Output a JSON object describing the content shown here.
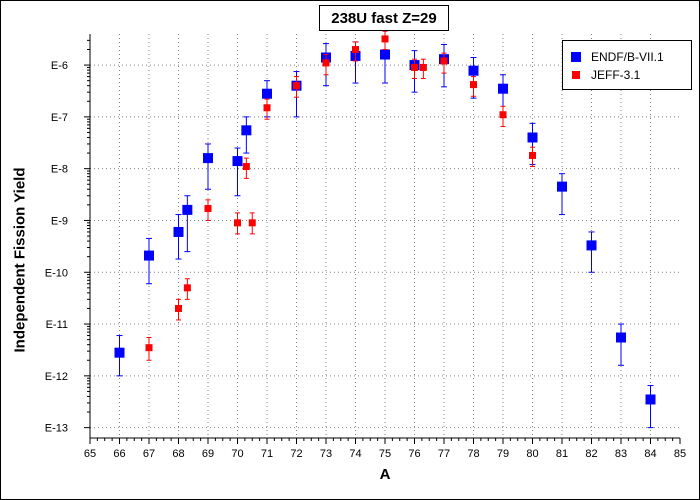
{
  "chart_data": {
    "type": "scatter",
    "title": "238U fast Z=29",
    "xlabel": "A",
    "ylabel": "Independent Fission Yield",
    "xlim": [
      65,
      85
    ],
    "ylim_log10": [
      -13.2,
      -5.4
    ],
    "y_scale": "log",
    "grid": true,
    "legend_position": "top-right",
    "x_ticks": [
      "65",
      "66",
      "67",
      "68",
      "69",
      "70",
      "71",
      "72",
      "73",
      "74",
      "75",
      "76",
      "77",
      "78",
      "79",
      "80",
      "81",
      "82",
      "83",
      "84",
      "85"
    ],
    "y_ticks": [
      {
        "exp": -6,
        "label": "E-6"
      },
      {
        "exp": -7,
        "label": "E-7"
      },
      {
        "exp": -8,
        "label": "E-8"
      },
      {
        "exp": -9,
        "label": "E-9"
      },
      {
        "exp": -10,
        "label": "E-10"
      },
      {
        "exp": -11,
        "label": "E-11"
      },
      {
        "exp": -12,
        "label": "E-12"
      },
      {
        "exp": -13,
        "label": "E-13"
      }
    ],
    "series": [
      {
        "name": "ENDF/B-VII.1",
        "color": "#0000ff",
        "marker": "square-large",
        "points": [
          {
            "x": 66,
            "y": 2.8e-12,
            "lo": 1e-12,
            "hi": 6e-12
          },
          {
            "x": 67,
            "y": 2.1e-10,
            "lo": 6e-11,
            "hi": 4.5e-10
          },
          {
            "x": 68,
            "y": 6e-10,
            "lo": 1.8e-10,
            "hi": 1.3e-09
          },
          {
            "x": 68.3,
            "y": 1.6e-09,
            "lo": 2.5e-10,
            "hi": 3e-09
          },
          {
            "x": 69,
            "y": 1.6e-08,
            "lo": 4e-09,
            "hi": 3e-08
          },
          {
            "x": 70,
            "y": 1.4e-08,
            "lo": 3e-09,
            "hi": 2.5e-08
          },
          {
            "x": 70.3,
            "y": 5.5e-08,
            "lo": 2e-08,
            "hi": 1e-07
          },
          {
            "x": 71,
            "y": 2.8e-07,
            "lo": 1e-07,
            "hi": 5e-07
          },
          {
            "x": 72,
            "y": 4e-07,
            "lo": 1e-07,
            "hi": 7.5e-07
          },
          {
            "x": 73,
            "y": 1.4e-06,
            "lo": 4e-07,
            "hi": 2.6e-06
          },
          {
            "x": 74,
            "y": 1.5e-06,
            "lo": 4.5e-07,
            "hi": 2.8e-06
          },
          {
            "x": 75,
            "y": 1.6e-06,
            "lo": 4.5e-07,
            "hi": 3e-06
          },
          {
            "x": 76,
            "y": 1e-06,
            "lo": 3e-07,
            "hi": 1.9e-06
          },
          {
            "x": 77,
            "y": 1.3e-06,
            "lo": 3.8e-07,
            "hi": 2.5e-06
          },
          {
            "x": 78,
            "y": 7.8e-07,
            "lo": 2.3e-07,
            "hi": 1.4e-06
          },
          {
            "x": 79,
            "y": 3.5e-07,
            "lo": 1e-07,
            "hi": 6.5e-07
          },
          {
            "x": 80,
            "y": 4e-08,
            "lo": 1.2e-08,
            "hi": 7.5e-08
          },
          {
            "x": 81,
            "y": 4.5e-09,
            "lo": 1.3e-09,
            "hi": 8e-09
          },
          {
            "x": 82,
            "y": 3.3e-10,
            "lo": 1e-10,
            "hi": 6e-10
          },
          {
            "x": 83,
            "y": 5.5e-12,
            "lo": 1.6e-12,
            "hi": 1e-11
          },
          {
            "x": 84,
            "y": 3.5e-13,
            "lo": 1e-13,
            "hi": 6.5e-13
          }
        ]
      },
      {
        "name": "JEFF-3.1",
        "color": "#ff0000",
        "marker": "square-small",
        "points": [
          {
            "x": 67,
            "y": 3.5e-12,
            "lo": 2e-12,
            "hi": 5.5e-12
          },
          {
            "x": 68,
            "y": 2e-11,
            "lo": 1.2e-11,
            "hi": 3e-11
          },
          {
            "x": 68.3,
            "y": 5e-11,
            "lo": 3e-11,
            "hi": 7.5e-11
          },
          {
            "x": 69,
            "y": 1.7e-09,
            "lo": 1e-09,
            "hi": 2.5e-09
          },
          {
            "x": 70,
            "y": 9e-10,
            "lo": 5.5e-10,
            "hi": 1.4e-09
          },
          {
            "x": 70.3,
            "y": 1.1e-08,
            "lo": 6.5e-09,
            "hi": 1.6e-08
          },
          {
            "x": 70.5,
            "y": 9e-10,
            "lo": 5.5e-10,
            "hi": 1.4e-09
          },
          {
            "x": 71,
            "y": 1.5e-07,
            "lo": 9e-08,
            "hi": 2.2e-07
          },
          {
            "x": 72,
            "y": 4e-07,
            "lo": 2.4e-07,
            "hi": 6e-07
          },
          {
            "x": 73,
            "y": 1.1e-06,
            "lo": 6.5e-07,
            "hi": 1.6e-06
          },
          {
            "x": 74,
            "y": 2e-06,
            "lo": 1.2e-06,
            "hi": 2.8e-06
          },
          {
            "x": 75,
            "y": 3.2e-06,
            "lo": 2e-06,
            "hi": 4.5e-06
          },
          {
            "x": 76,
            "y": 9e-07,
            "lo": 5.5e-07,
            "hi": 1.3e-06
          },
          {
            "x": 76.3,
            "y": 9e-07,
            "lo": 5.5e-07,
            "hi": 1.3e-06
          },
          {
            "x": 77,
            "y": 1.2e-06,
            "lo": 7e-07,
            "hi": 1.7e-06
          },
          {
            "x": 78,
            "y": 4.2e-07,
            "lo": 2.5e-07,
            "hi": 6e-07
          },
          {
            "x": 79,
            "y": 1.1e-07,
            "lo": 6.5e-08,
            "hi": 1.6e-07
          },
          {
            "x": 80,
            "y": 1.8e-08,
            "lo": 1.1e-08,
            "hi": 2.6e-08
          }
        ]
      }
    ]
  }
}
